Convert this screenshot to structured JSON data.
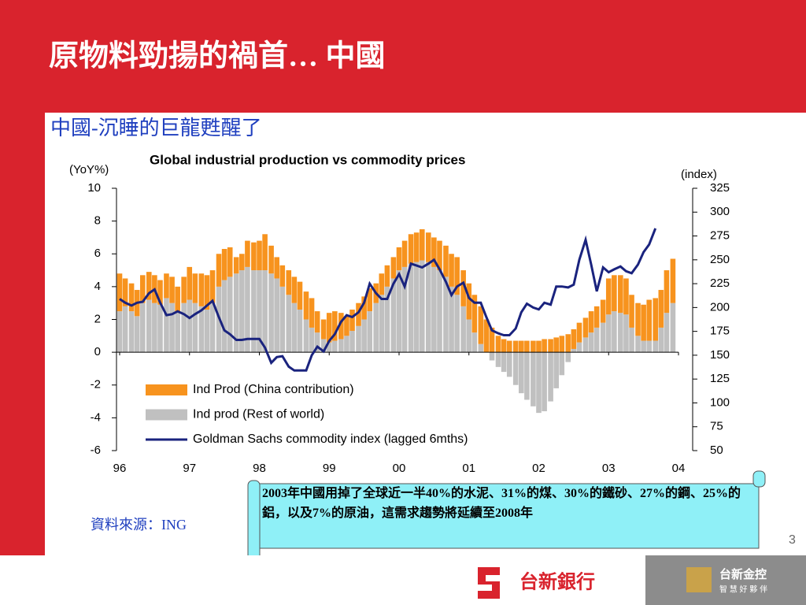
{
  "slide": {
    "title": "原物料勁揚的禍首… 中國",
    "subtitle": "中國-沉睡的巨龍甦醒了",
    "source": "資料來源：ING",
    "callout": "2003年中國用掉了全球近一半40%的水泥、31%的煤、30%的鐵砂、27%的鋼、25%的鋁，以及7%的原油，這需求趨勢將延續至2008年",
    "page_number": "3",
    "bank_logo": "台新銀行",
    "holding_logo": "台新金控",
    "holding_slogan": "智 慧 好 夥 伴"
  },
  "chart_data": {
    "type": "bar_line",
    "title": "Global industrial production vs commodity prices",
    "ylabel": "(YoY%)",
    "y2label": "(index)",
    "xlim": [
      1996,
      2004
    ],
    "xticks": [
      {
        "value": 1996,
        "label": "96"
      },
      {
        "value": 1997,
        "label": "97"
      },
      {
        "value": 1998,
        "label": "98"
      },
      {
        "value": 1999,
        "label": "99"
      },
      {
        "value": 2000,
        "label": "00"
      },
      {
        "value": 2001,
        "label": "01"
      },
      {
        "value": 2002,
        "label": "02"
      },
      {
        "value": 2003,
        "label": "03"
      },
      {
        "value": 2004,
        "label": "04"
      }
    ],
    "ylim": [
      -6,
      10
    ],
    "yticks": [
      -6,
      -4,
      -2,
      0,
      2,
      4,
      6,
      8,
      10
    ],
    "y2lim": [
      50,
      325
    ],
    "y2ticks": [
      50,
      75,
      100,
      125,
      150,
      175,
      200,
      225,
      250,
      275,
      300,
      325
    ],
    "x": [
      1996.0,
      1996.08,
      1996.17,
      1996.25,
      1996.33,
      1996.42,
      1996.5,
      1996.58,
      1996.67,
      1996.75,
      1996.83,
      1996.92,
      1997.0,
      1997.08,
      1997.17,
      1997.25,
      1997.33,
      1997.42,
      1997.5,
      1997.58,
      1997.67,
      1997.75,
      1997.83,
      1997.92,
      1998.0,
      1998.08,
      1998.17,
      1998.25,
      1998.33,
      1998.42,
      1998.5,
      1998.58,
      1998.67,
      1998.75,
      1998.83,
      1998.92,
      1999.0,
      1999.08,
      1999.17,
      1999.25,
      1999.33,
      1999.42,
      1999.5,
      1999.58,
      1999.67,
      1999.75,
      1999.83,
      1999.92,
      2000.0,
      2000.08,
      2000.17,
      2000.25,
      2000.33,
      2000.42,
      2000.5,
      2000.58,
      2000.67,
      2000.75,
      2000.83,
      2000.92,
      2001.0,
      2001.08,
      2001.17,
      2001.25,
      2001.33,
      2001.42,
      2001.5,
      2001.58,
      2001.67,
      2001.75,
      2001.83,
      2001.92,
      2002.0,
      2002.08,
      2002.17,
      2002.25,
      2002.33,
      2002.42,
      2002.5,
      2002.58,
      2002.67,
      2002.75,
      2002.83,
      2002.92,
      2003.0,
      2003.08,
      2003.17,
      2003.25,
      2003.33,
      2003.42,
      2003.5,
      2003.58,
      2003.67,
      2003.75,
      2003.83,
      2003.92
    ],
    "series": [
      {
        "name": "Ind Prod (China contribution)",
        "color": "#f7931e",
        "values": [
          2.3,
          1.7,
          1.7,
          1.6,
          1.7,
          1.7,
          1.7,
          1.5,
          1.5,
          1.6,
          1.5,
          1.6,
          2.0,
          1.8,
          2.0,
          2.1,
          2.0,
          2.0,
          1.9,
          1.8,
          1.0,
          1.0,
          1.6,
          1.7,
          1.8,
          2.2,
          1.7,
          1.3,
          1.3,
          1.5,
          1.6,
          1.7,
          1.7,
          1.8,
          1.3,
          1.2,
          1.8,
          1.8,
          1.6,
          1.2,
          1.3,
          1.4,
          1.4,
          1.4,
          1.2,
          1.3,
          1.3,
          1.3,
          1.4,
          1.6,
          1.8,
          1.8,
          1.9,
          1.8,
          1.8,
          1.8,
          1.9,
          2.0,
          2.3,
          2.2,
          2.2,
          2.3,
          2.3,
          2.0,
          1.5,
          1.0,
          0.8,
          0.7,
          0.7,
          0.7,
          0.7,
          0.7,
          0.7,
          0.8,
          0.8,
          0.9,
          1.0,
          1.1,
          1.2,
          1.2,
          1.2,
          1.3,
          1.3,
          1.4,
          2.2,
          2.2,
          2.3,
          2.2,
          2.0,
          2.0,
          2.2,
          2.5,
          2.6,
          2.3,
          2.6,
          2.7
        ]
      },
      {
        "name": "Ind prod (Rest of world)",
        "color": "#c0c0c0",
        "values": [
          2.5,
          2.8,
          2.5,
          2.2,
          3.0,
          3.2,
          3.0,
          2.9,
          3.3,
          3.0,
          2.5,
          3.0,
          3.2,
          3.0,
          2.8,
          2.6,
          3.0,
          4.0,
          4.4,
          4.6,
          4.8,
          5.0,
          5.2,
          5.0,
          5.0,
          5.0,
          4.8,
          4.5,
          4.0,
          3.5,
          3.0,
          2.6,
          2.0,
          1.5,
          1.2,
          0.8,
          0.6,
          0.7,
          0.8,
          1.0,
          1.3,
          1.6,
          2.0,
          2.5,
          3.0,
          3.5,
          4.0,
          4.5,
          5.0,
          5.2,
          5.4,
          5.5,
          5.6,
          5.5,
          5.2,
          5.0,
          4.6,
          4.0,
          3.5,
          2.8,
          2.0,
          1.2,
          0.5,
          0.0,
          -0.5,
          -0.9,
          -1.2,
          -1.5,
          -2.0,
          -2.5,
          -2.9,
          -3.3,
          -3.7,
          -3.6,
          -3.0,
          -2.2,
          -1.4,
          -0.6,
          0.2,
          0.6,
          0.9,
          1.2,
          1.5,
          1.8,
          2.3,
          2.5,
          2.4,
          2.3,
          1.5,
          1.0,
          0.7,
          0.7,
          0.7,
          1.5,
          2.4,
          3.0
        ]
      },
      {
        "name": "Goldman Sachs commodity index (lagged 6mths)",
        "color": "#1a237e",
        "axis": "y2",
        "values": [
          209,
          205,
          202,
          205,
          206,
          215,
          219,
          205,
          192,
          193,
          196,
          193,
          189,
          193,
          197,
          202,
          207,
          190,
          176,
          172,
          166,
          166,
          167,
          167,
          167,
          158,
          142,
          148,
          149,
          138,
          134,
          134,
          134,
          150,
          159,
          154,
          165,
          172,
          185,
          192,
          190,
          195,
          205,
          225,
          215,
          209,
          209,
          225,
          235,
          222,
          246,
          244,
          242,
          246,
          250,
          240,
          227,
          213,
          222,
          226,
          210,
          205,
          205,
          190,
          176,
          173,
          171,
          171,
          178,
          195,
          204,
          200,
          198,
          205,
          203,
          222,
          222,
          221,
          224,
          250,
          271,
          245,
          217,
          242,
          237,
          240,
          243,
          238,
          236,
          245,
          258,
          266,
          283,
          null,
          null,
          null
        ]
      }
    ]
  }
}
